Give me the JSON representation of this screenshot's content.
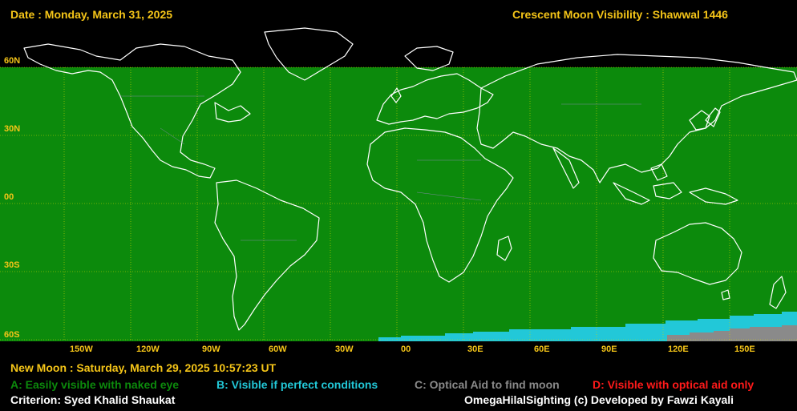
{
  "header": {
    "date": "Date : Monday, March 31, 2025",
    "title": "Crescent Moon Visibility : Shawwal  1446"
  },
  "map": {
    "lat_labels": [
      "60N",
      "30N",
      "00",
      "30S",
      "60S"
    ],
    "lon_labels": [
      "150W",
      "120W",
      "90W",
      "60W",
      "30W",
      "00",
      "30E",
      "60E",
      "90E",
      "120E",
      "150E"
    ],
    "zones": {
      "A": {
        "label": "A: Easily visible with naked eye",
        "color": "#0c8a0c"
      },
      "B": {
        "label": "B: Visible if perfect conditions",
        "color": "#22c8d8"
      },
      "C": {
        "label": "C: Optical Aid to find moon",
        "color": "#8a8a8a"
      },
      "D": {
        "label": "D: Visible with optical aid only",
        "color": "#ff1a1a"
      }
    },
    "grid_color": "#d8d800",
    "coast_color": "#ffffff"
  },
  "footer": {
    "new_moon": "New Moon : Saturday, March 29, 2025  10:57:23  UT",
    "criterion": "Criterion: Syed Khalid Shaukat",
    "credit": "OmegaHilalSighting  (c)  Developed by Fawzi Kayali"
  }
}
